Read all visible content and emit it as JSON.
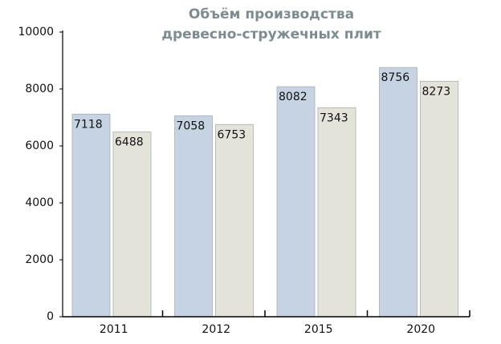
{
  "chart_data": {
    "type": "bar",
    "title": [
      "Объём производства",
      "древесно-стружечных плит"
    ],
    "categories": [
      "2011",
      "2012",
      "2015",
      "2020"
    ],
    "series": [
      {
        "color": "#c5d3e3",
        "values": [
          7118,
          7058,
          8082,
          8756
        ]
      },
      {
        "color": "#e4e3da",
        "values": [
          6488,
          6753,
          7343,
          8273
        ]
      }
    ],
    "ylim": [
      0,
      10000
    ],
    "yticks": [
      0,
      2000,
      4000,
      6000,
      8000,
      10000
    ],
    "grid": false
  }
}
